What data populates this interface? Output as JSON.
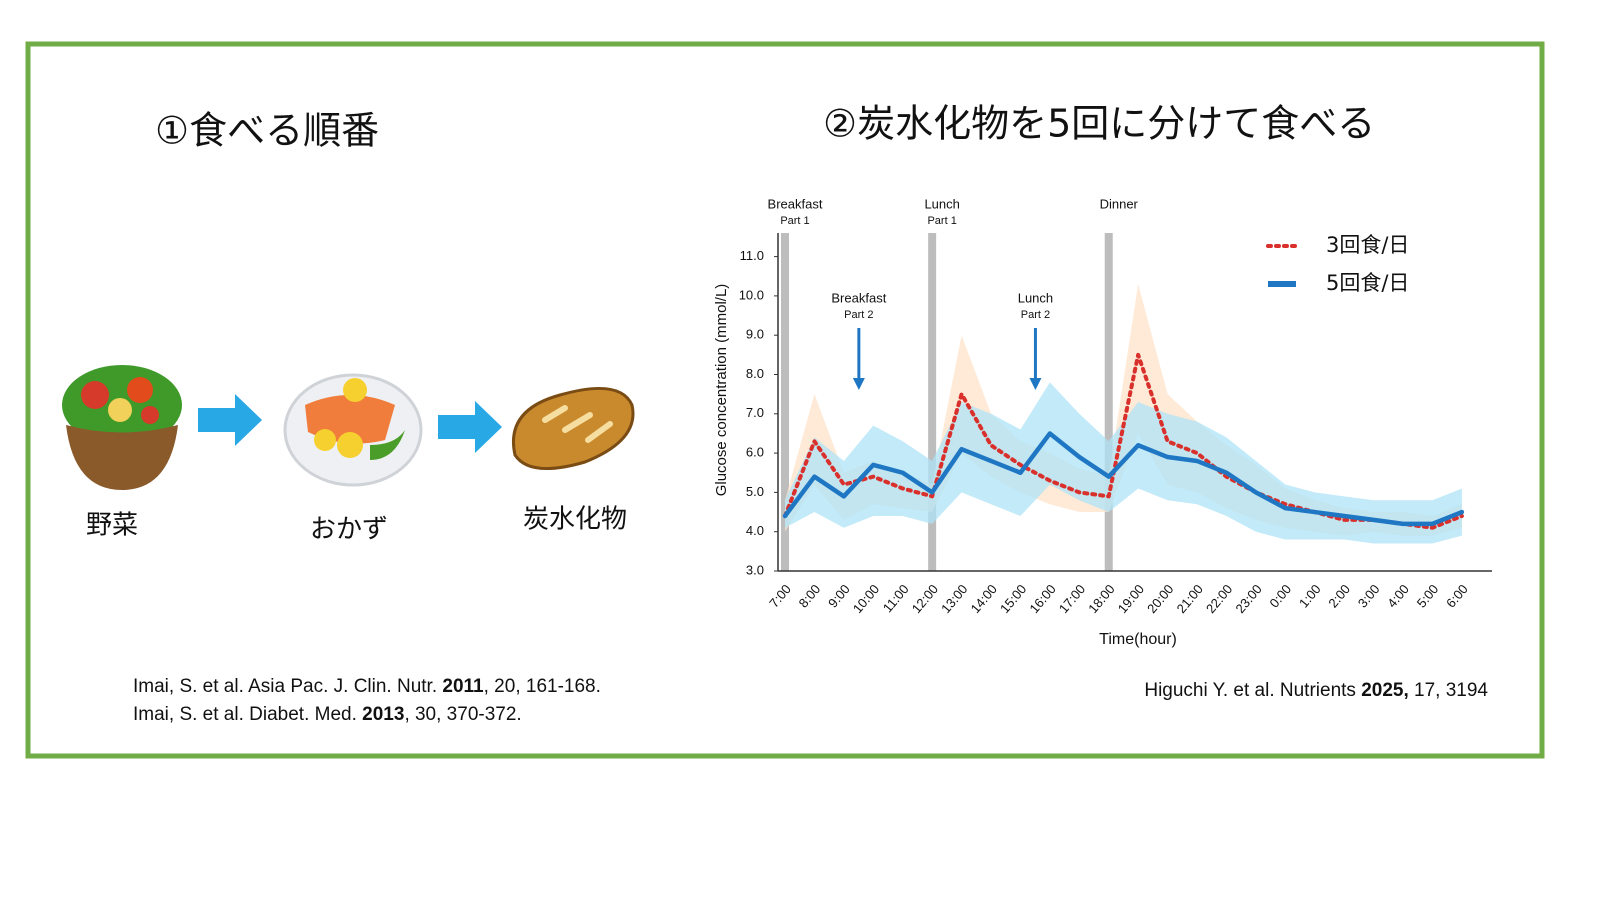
{
  "left": {
    "title": "①食べる順番",
    "steps": [
      "野菜",
      "おかず",
      "炭水化物"
    ],
    "references": [
      [
        {
          "text": "Imai, S. et al. Asia Pac. J. Clin. Nutr. "
        },
        {
          "text": "2011",
          "bold": true
        },
        {
          "text": ", 20, 161-168."
        }
      ],
      [
        {
          "text": "Imai, S. et al. Diabet. Med. "
        },
        {
          "text": "2013",
          "bold": true
        },
        {
          "text": ", 30, 370-372."
        }
      ]
    ]
  },
  "chart_data": {
    "type": "line",
    "title": "②炭水化物を5回に分けて食べる",
    "x_label": "Time(hour)",
    "y_label": "Glucose concentration (mmol/L)",
    "categories": [
      "7:00",
      "8:00",
      "9:00",
      "10:00",
      "11:00",
      "12:00",
      "13:00",
      "14:00",
      "15:00",
      "16:00",
      "17:00",
      "18:00",
      "19:00",
      "20:00",
      "21:00",
      "22:00",
      "23:00",
      "0:00",
      "1:00",
      "2:00",
      "3:00",
      "4:00",
      "5:00",
      "6:00"
    ],
    "ylim": [
      3.0,
      11.6
    ],
    "yticks": [
      {
        "value": 3,
        "label": "3.0"
      },
      {
        "value": 4,
        "label": "4.0"
      },
      {
        "value": 5,
        "label": "5.0"
      },
      {
        "value": 6,
        "label": "6.0"
      },
      {
        "value": 7,
        "label": "7.0"
      },
      {
        "value": 8,
        "label": "8.0"
      },
      {
        "value": 9,
        "label": "9.0"
      },
      {
        "value": 10,
        "label": "10.0"
      },
      {
        "value": 11,
        "label": "11.0"
      }
    ],
    "grid": false,
    "legend": "upper right",
    "series": [
      {
        "name": "3回食/日",
        "color": "#d9302c",
        "band_color": "#fde3c8",
        "dash": true,
        "values": [
          4.4,
          6.3,
          5.2,
          5.4,
          5.1,
          4.9,
          7.5,
          6.2,
          5.7,
          5.3,
          5.0,
          4.9,
          8.5,
          6.3,
          6.0,
          5.4,
          5.0,
          4.7,
          4.5,
          4.3,
          4.3,
          4.2,
          4.1,
          4.4
        ],
        "upper": [
          4.8,
          7.5,
          5.5,
          5.8,
          5.5,
          5.2,
          9.0,
          7.0,
          6.3,
          6.0,
          5.6,
          5.4,
          10.3,
          7.5,
          6.8,
          6.2,
          5.7,
          5.1,
          4.8,
          4.6,
          4.5,
          4.5,
          4.4,
          4.7
        ],
        "lower": [
          4.0,
          5.2,
          4.3,
          4.7,
          4.6,
          4.5,
          6.0,
          5.4,
          5.0,
          4.7,
          4.5,
          4.5,
          6.5,
          5.2,
          5.0,
          4.6,
          4.3,
          4.1,
          4.0,
          3.9,
          4.0,
          3.9,
          3.9,
          4.1
        ]
      },
      {
        "name": "5回食/日",
        "color": "#1f77c4",
        "band_color": "#aee3f7",
        "dash": false,
        "values": [
          4.4,
          5.4,
          4.9,
          5.7,
          5.5,
          5.0,
          6.1,
          5.8,
          5.5,
          6.5,
          5.9,
          5.4,
          6.2,
          5.9,
          5.8,
          5.5,
          5.0,
          4.6,
          4.5,
          4.4,
          4.3,
          4.2,
          4.2,
          4.5
        ],
        "upper": [
          4.8,
          6.4,
          5.8,
          6.7,
          6.3,
          5.8,
          7.3,
          7.0,
          6.6,
          7.8,
          7.0,
          6.3,
          7.3,
          7.0,
          6.8,
          6.4,
          5.8,
          5.2,
          5.0,
          4.9,
          4.8,
          4.8,
          4.8,
          5.1
        ],
        "lower": [
          4.1,
          4.5,
          4.1,
          4.4,
          4.4,
          4.2,
          5.0,
          4.7,
          4.4,
          5.2,
          4.8,
          4.5,
          5.1,
          4.8,
          4.7,
          4.4,
          4.0,
          3.8,
          3.8,
          3.8,
          3.7,
          3.7,
          3.7,
          3.9
        ]
      }
    ],
    "annotations": [
      {
        "kind": "bar",
        "at": "7:00",
        "label": "Breakfast",
        "sublabel": "Part 1"
      },
      {
        "kind": "bar",
        "at": "12:00",
        "label": "Lunch",
        "sublabel": "Part 1"
      },
      {
        "kind": "bar",
        "at": "18:00",
        "label": "Dinner"
      },
      {
        "kind": "arrow",
        "at": "9:00",
        "label": "Breakfast",
        "sublabel": "Part 2"
      },
      {
        "kind": "arrow",
        "at": "15:00",
        "label": "Lunch",
        "sublabel": "Part 2"
      }
    ],
    "source": [
      {
        "text": "Higuchi Y. et al. Nutrients "
      },
      {
        "text": "2025,",
        "bold": true
      },
      {
        "text": " 17, 3194"
      }
    ]
  }
}
